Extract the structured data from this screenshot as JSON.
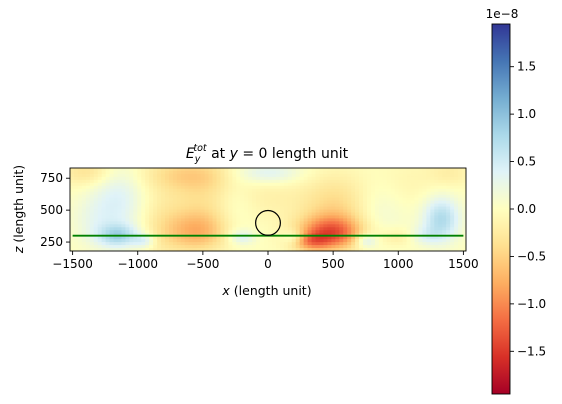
{
  "chart_data": {
    "type": "heatmap",
    "title": {
      "base": "E",
      "sub": "y",
      "sup": "tot",
      "rest": " at ",
      "var": "y",
      "tail": " = 0 length unit"
    },
    "xlabel": {
      "var": "x",
      "unit": " (length unit)"
    },
    "ylabel": {
      "var": "z",
      "unit": " (length unit)"
    },
    "xlim": [
      -1520,
      1520
    ],
    "ylim": [
      180,
      830
    ],
    "xticks": [
      -1500,
      -1000,
      -500,
      0,
      500,
      1000,
      1500
    ],
    "xtick_labels": [
      "−1500",
      "−1000",
      "−500",
      "0",
      "500",
      "1000",
      "1500"
    ],
    "yticks": [
      250,
      500,
      750
    ],
    "ytick_labels": [
      "250",
      "500",
      "750"
    ],
    "colorbar": {
      "min": -1.95e-08,
      "max": 1.95e-08,
      "ticks": [
        -1.5,
        -1.0,
        -0.5,
        0.0,
        0.5,
        1.0,
        1.5
      ],
      "tick_labels": [
        "−1.5",
        "−1.0",
        "−0.5",
        "0.0",
        "0.5",
        "1.0",
        "1.5"
      ],
      "offset_text": "1e−8",
      "colormap": "RdYlBu"
    },
    "overlays": {
      "interface_line": {
        "z": 300,
        "x_range": [
          -1500,
          1500
        ],
        "color": "#008000"
      },
      "scatterer": {
        "x": 0,
        "z": 400,
        "radius": 95,
        "color": "#000000"
      }
    },
    "field_features": [
      {
        "x": -1150,
        "z": 300,
        "value": 0.7,
        "sx": 110,
        "sz": 60
      },
      {
        "x": -1150,
        "z": 580,
        "value": 0.4,
        "sx": 140,
        "sz": 220
      },
      {
        "x": -1350,
        "z": 420,
        "value": 0.2,
        "sx": 120,
        "sz": 140
      },
      {
        "x": -950,
        "z": 260,
        "value": 0.4,
        "sx": 60,
        "sz": 40
      },
      {
        "x": -830,
        "z": 380,
        "value": -0.2,
        "sx": 120,
        "sz": 200
      },
      {
        "x": -550,
        "z": 330,
        "value": -0.7,
        "sx": 170,
        "sz": 110
      },
      {
        "x": -520,
        "z": 600,
        "value": -0.3,
        "sx": 190,
        "sz": 180
      },
      {
        "x": -620,
        "z": 780,
        "value": -0.4,
        "sx": 260,
        "sz": 90
      },
      {
        "x": -200,
        "z": 290,
        "value": 0.4,
        "sx": 70,
        "sz": 40
      },
      {
        "x": 200,
        "z": 290,
        "value": 0.4,
        "sx": 60,
        "sz": 40
      },
      {
        "x": -250,
        "z": 520,
        "value": 0.15,
        "sx": 100,
        "sz": 200
      },
      {
        "x": 0,
        "z": 600,
        "value": -0.15,
        "sx": 180,
        "sz": 120
      },
      {
        "x": 0,
        "z": 790,
        "value": 0.4,
        "sx": 180,
        "sz": 60
      },
      {
        "x": 480,
        "z": 320,
        "value": -1.2,
        "sx": 170,
        "sz": 90
      },
      {
        "x": 520,
        "z": 520,
        "value": -0.45,
        "sx": 200,
        "sz": 180
      },
      {
        "x": 330,
        "z": 250,
        "value": -0.6,
        "sx": 100,
        "sz": 50
      },
      {
        "x": 750,
        "z": 260,
        "value": 0.5,
        "sx": 60,
        "sz": 40
      },
      {
        "x": 850,
        "z": 520,
        "value": 0.25,
        "sx": 150,
        "sz": 200
      },
      {
        "x": 1000,
        "z": 290,
        "value": -0.25,
        "sx": 100,
        "sz": 50
      },
      {
        "x": 1000,
        "z": 700,
        "value": -0.15,
        "sx": 200,
        "sz": 150
      },
      {
        "x": 1330,
        "z": 430,
        "value": 0.75,
        "sx": 100,
        "sz": 120
      },
      {
        "x": 1200,
        "z": 300,
        "value": 0.3,
        "sx": 90,
        "sz": 50
      },
      {
        "x": -1380,
        "z": 800,
        "value": -0.35,
        "sx": 150,
        "sz": 80
      },
      {
        "x": 1400,
        "z": 790,
        "value": -0.2,
        "sx": 120,
        "sz": 80
      }
    ]
  }
}
